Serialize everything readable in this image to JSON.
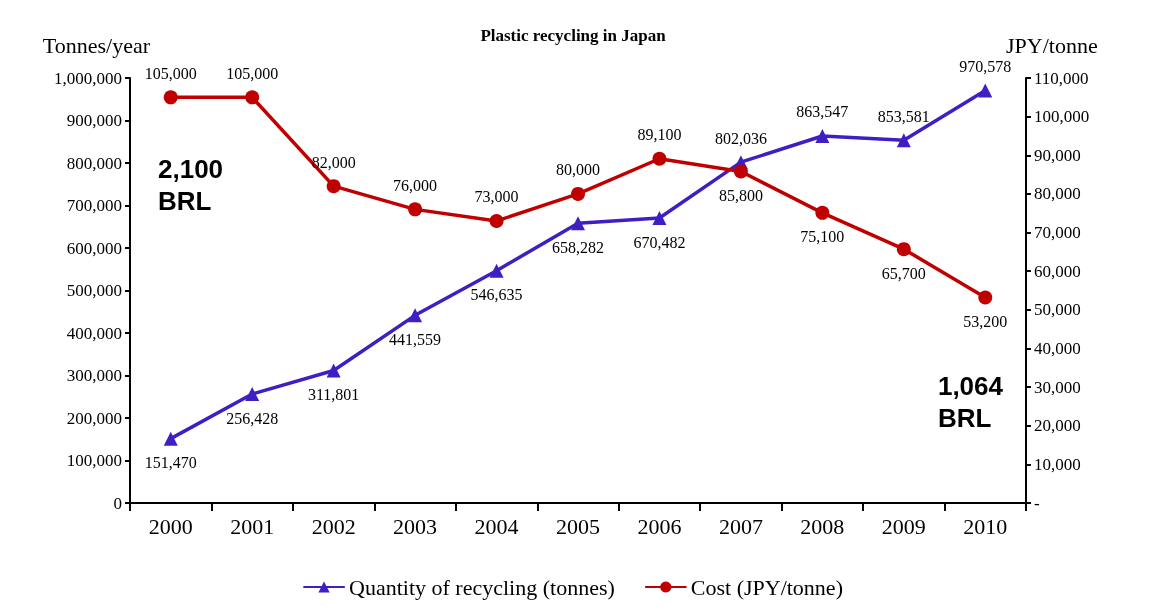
{
  "chart_data": {
    "type": "line",
    "title": "Plastic recycling in Japan",
    "ylabel": "Tonnes/year",
    "y2label": "JPY/tonne",
    "categories": [
      "2000",
      "2001",
      "2002",
      "2003",
      "2004",
      "2005",
      "2006",
      "2007",
      "2008",
      "2009",
      "2010"
    ],
    "series": [
      {
        "name": "Quantity of recycling (tonnes)",
        "color": "#3f1fc4",
        "marker": "triangle",
        "values": [
          151470,
          256428,
          311801,
          441559,
          546635,
          658282,
          670482,
          802036,
          863547,
          853581,
          970578
        ],
        "value_labels": [
          "151,470",
          "256,428",
          "311,801",
          "441,559",
          "546,635",
          "658,282",
          "670,482",
          "802,036",
          "863,547",
          "853,581",
          "970,578"
        ]
      },
      {
        "name": "Cost (JPY/tonne)",
        "color": "#c00000",
        "marker": "circle",
        "axis": "y2",
        "values": [
          105000,
          105000,
          82000,
          76000,
          73000,
          80000,
          89100,
          85800,
          75100,
          65700,
          53200
        ],
        "value_labels": [
          "105,000",
          "105,000",
          "82,000",
          "76,000",
          "73,000",
          "80,000",
          "89,100",
          "85,800",
          "75,100",
          "65,700",
          "53,200"
        ]
      }
    ],
    "ylim": [
      0,
      1000000
    ],
    "yticks": [
      {
        "value": 0,
        "label": "0"
      },
      {
        "value": 100000,
        "label": "100,000"
      },
      {
        "value": 200000,
        "label": "200,000"
      },
      {
        "value": 300000,
        "label": "300,000"
      },
      {
        "value": 400000,
        "label": "400,000"
      },
      {
        "value": 500000,
        "label": "500,000"
      },
      {
        "value": 600000,
        "label": "600,000"
      },
      {
        "value": 700000,
        "label": "700,000"
      },
      {
        "value": 800000,
        "label": "800,000"
      },
      {
        "value": 900000,
        "label": "900,000"
      },
      {
        "value": 1000000,
        "label": "1,000,000"
      }
    ],
    "y2lim": [
      0,
      110000
    ],
    "y2ticks": [
      {
        "value": 0,
        "label": "-"
      },
      {
        "value": 10000,
        "label": "10,000"
      },
      {
        "value": 20000,
        "label": "20,000"
      },
      {
        "value": 30000,
        "label": "30,000"
      },
      {
        "value": 40000,
        "label": "40,000"
      },
      {
        "value": 50000,
        "label": "50,000"
      },
      {
        "value": 60000,
        "label": "60,000"
      },
      {
        "value": 70000,
        "label": "70,000"
      },
      {
        "value": 80000,
        "label": "80,000"
      },
      {
        "value": 90000,
        "label": "90,000"
      },
      {
        "value": 100000,
        "label": "100,000"
      },
      {
        "value": 110000,
        "label": "110,000"
      }
    ],
    "annotations": [
      "2,100\nBRL",
      "1,064\nBRL"
    ],
    "grid": false,
    "legend": "bottom",
    "line_style": "solid"
  }
}
